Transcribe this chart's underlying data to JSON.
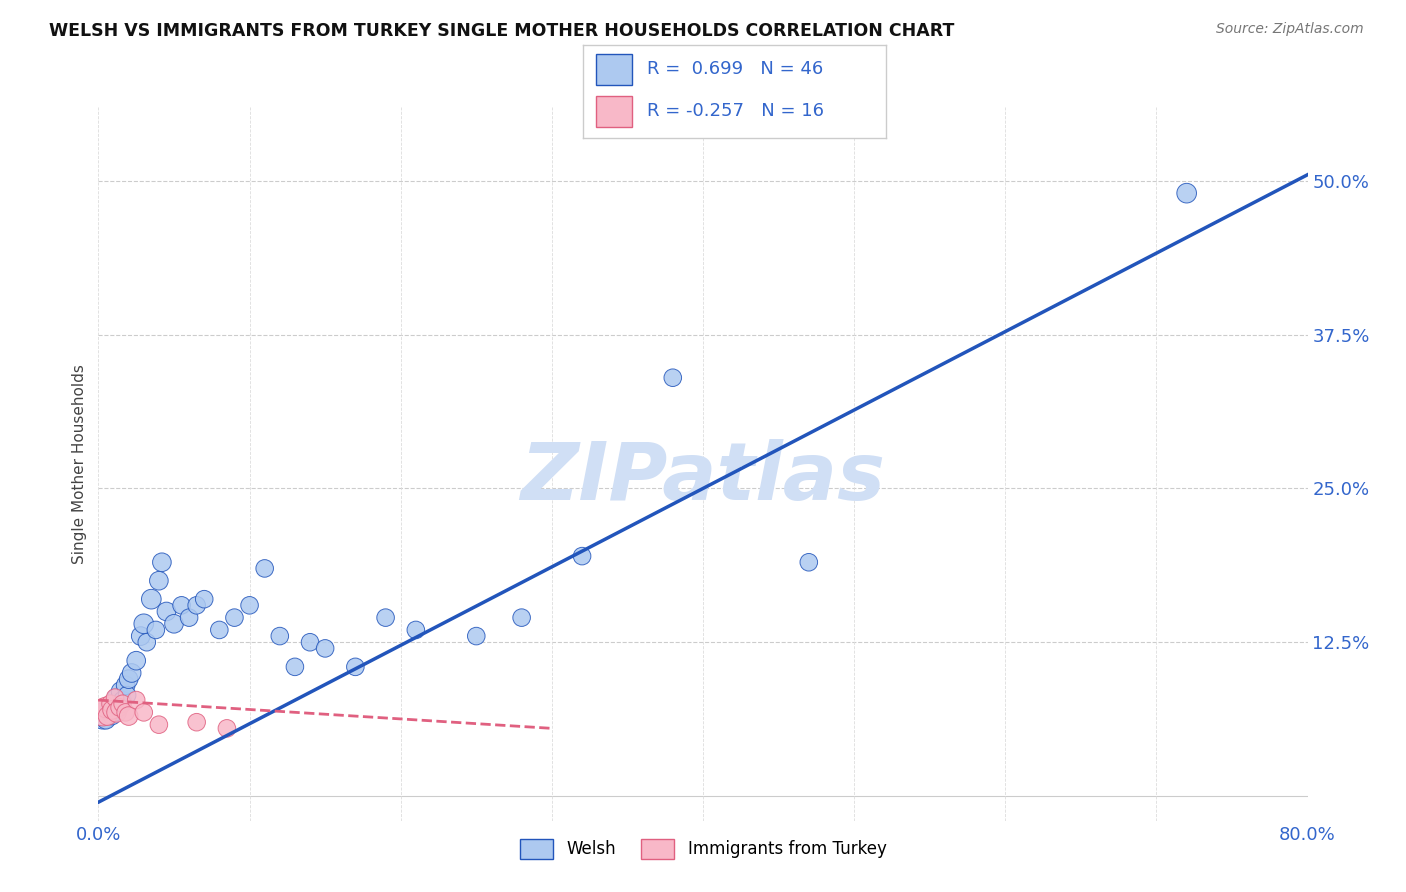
{
  "title": "WELSH VS IMMIGRANTS FROM TURKEY SINGLE MOTHER HOUSEHOLDS CORRELATION CHART",
  "source": "Source: ZipAtlas.com",
  "ylabel": "Single Mother Households",
  "xlim": [
    0.0,
    0.8
  ],
  "ylim": [
    -0.02,
    0.56
  ],
  "x_ticks": [
    0.0,
    0.1,
    0.2,
    0.3,
    0.4,
    0.5,
    0.6,
    0.7,
    0.8
  ],
  "y_ticks": [
    0.0,
    0.125,
    0.25,
    0.375,
    0.5
  ],
  "R_welsh": 0.699,
  "N_welsh": 46,
  "R_turkey": -0.257,
  "N_turkey": 16,
  "welsh_color": "#adc9f0",
  "welsh_line_color": "#2255bb",
  "turkey_color": "#f8b8c8",
  "turkey_line_color": "#e06080",
  "watermark": "ZIPatlas",
  "watermark_color": "#d0dff5",
  "legend_welsh": "Welsh",
  "legend_turkey": "Immigrants from Turkey",
  "welsh_scatter_x": [
    0.003,
    0.005,
    0.007,
    0.008,
    0.009,
    0.01,
    0.011,
    0.012,
    0.013,
    0.015,
    0.016,
    0.018,
    0.019,
    0.02,
    0.022,
    0.025,
    0.028,
    0.03,
    0.032,
    0.035,
    0.038,
    0.04,
    0.042,
    0.045,
    0.05,
    0.055,
    0.06,
    0.065,
    0.07,
    0.08,
    0.09,
    0.1,
    0.11,
    0.12,
    0.13,
    0.14,
    0.15,
    0.17,
    0.19,
    0.21,
    0.25,
    0.28,
    0.32,
    0.38,
    0.47,
    0.72
  ],
  "welsh_scatter_y": [
    0.065,
    0.062,
    0.068,
    0.07,
    0.065,
    0.075,
    0.068,
    0.08,
    0.072,
    0.085,
    0.078,
    0.09,
    0.082,
    0.095,
    0.1,
    0.11,
    0.13,
    0.14,
    0.125,
    0.16,
    0.135,
    0.175,
    0.19,
    0.15,
    0.14,
    0.155,
    0.145,
    0.155,
    0.16,
    0.135,
    0.145,
    0.155,
    0.185,
    0.13,
    0.105,
    0.125,
    0.12,
    0.105,
    0.145,
    0.135,
    0.13,
    0.145,
    0.195,
    0.34,
    0.19,
    0.49
  ],
  "welsh_scatter_size": [
    350,
    180,
    160,
    200,
    160,
    200,
    160,
    180,
    160,
    200,
    160,
    180,
    160,
    180,
    180,
    180,
    180,
    200,
    160,
    200,
    160,
    180,
    180,
    180,
    180,
    160,
    160,
    160,
    160,
    160,
    160,
    160,
    160,
    160,
    160,
    160,
    160,
    160,
    160,
    160,
    160,
    160,
    160,
    160,
    160,
    200
  ],
  "turkey_scatter_x": [
    0.003,
    0.005,
    0.006,
    0.008,
    0.009,
    0.011,
    0.012,
    0.014,
    0.016,
    0.018,
    0.02,
    0.025,
    0.03,
    0.04,
    0.065,
    0.085
  ],
  "turkey_scatter_y": [
    0.068,
    0.072,
    0.065,
    0.075,
    0.07,
    0.08,
    0.068,
    0.072,
    0.075,
    0.068,
    0.065,
    0.078,
    0.068,
    0.058,
    0.06,
    0.055
  ],
  "turkey_scatter_size": [
    380,
    220,
    180,
    160,
    180,
    160,
    200,
    160,
    160,
    160,
    180,
    160,
    160,
    160,
    160,
    160
  ],
  "welsh_line_x0": 0.0,
  "welsh_line_y0": -0.005,
  "welsh_line_x1": 0.8,
  "welsh_line_y1": 0.505,
  "turkey_line_x0": 0.0,
  "turkey_line_y0": 0.078,
  "turkey_line_x1": 0.3,
  "turkey_line_y1": 0.055
}
